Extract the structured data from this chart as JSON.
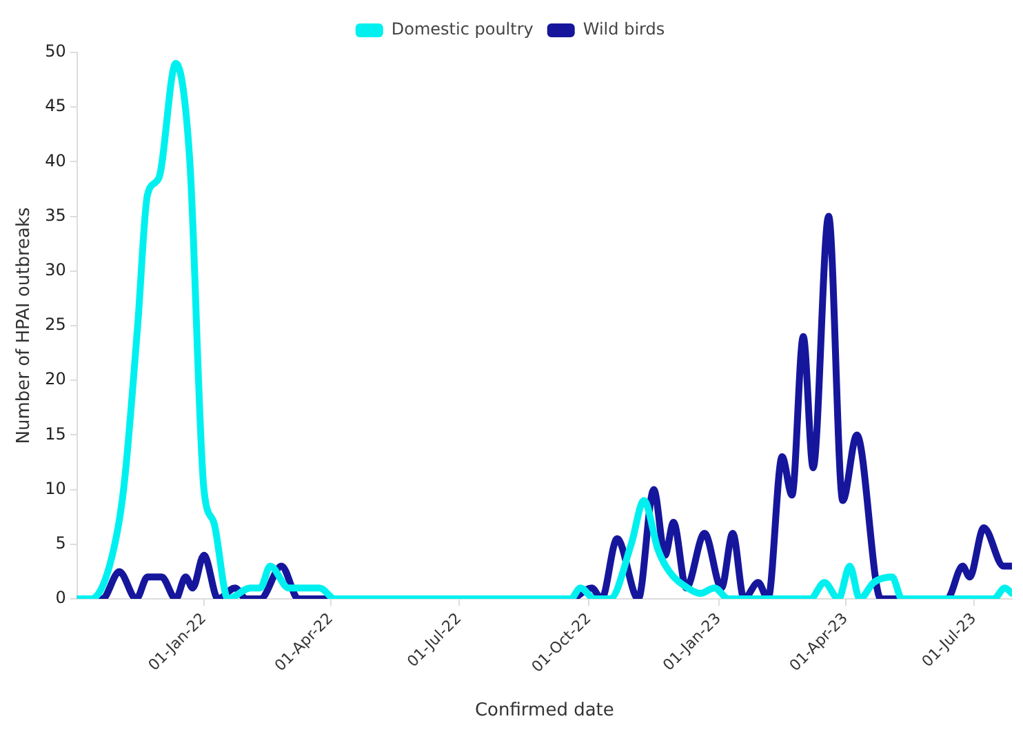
{
  "chart_data": {
    "type": "line",
    "xlabel": "Confirmed date",
    "ylabel": "Number of HPAI outbreaks",
    "xlim": [
      "2021-10-03",
      "2023-07-28"
    ],
    "xticks": [
      {
        "value": "2022-01-01",
        "label": "01-Jan-22"
      },
      {
        "value": "2022-04-01",
        "label": "01-Apr-22"
      },
      {
        "value": "2022-07-01",
        "label": "01-Jul-22"
      },
      {
        "value": "2022-10-01",
        "label": "01-Oct-22"
      },
      {
        "value": "2023-01-01",
        "label": "01-Jan-23"
      },
      {
        "value": "2023-04-01",
        "label": "01-Apr-23"
      },
      {
        "value": "2023-07-01",
        "label": "01-Jul-23"
      }
    ],
    "ylim": [
      0,
      50
    ],
    "yticks": [
      0,
      5,
      10,
      15,
      20,
      25,
      30,
      35,
      40,
      45,
      50
    ],
    "grid": false,
    "legend": "top",
    "marker": "none",
    "line_style": "solid",
    "series": [
      {
        "name": "Domestic poultry",
        "color": "#00f0f0",
        "x": [
          "2021-10-03",
          "2021-10-13",
          "2021-10-26",
          "2021-11-05",
          "2021-11-15",
          "2021-11-22",
          "2021-11-30",
          "2021-12-12",
          "2021-12-22",
          "2022-01-01",
          "2022-01-08",
          "2022-01-18",
          "2022-02-03",
          "2022-02-10",
          "2022-02-17",
          "2022-03-02",
          "2022-03-24",
          "2022-04-04",
          "2022-09-18",
          "2022-09-25",
          "2022-10-05",
          "2022-10-16",
          "2022-10-31",
          "2022-11-09",
          "2022-11-19",
          "2022-11-27",
          "2022-12-10",
          "2022-12-19",
          "2022-12-29",
          "2023-01-08",
          "2023-03-07",
          "2023-03-17",
          "2023-03-27",
          "2023-04-04",
          "2023-04-11",
          "2023-04-21",
          "2023-05-04",
          "2023-05-11",
          "2023-07-15",
          "2023-07-23",
          "2023-07-28"
        ],
        "values": [
          0,
          0,
          3,
          10,
          25,
          37,
          38.5,
          49,
          40,
          10,
          7,
          0,
          1,
          1,
          3,
          1,
          1,
          0,
          0,
          1,
          0,
          0,
          5,
          9,
          4.5,
          2.5,
          1,
          0.5,
          1,
          0,
          0,
          1.5,
          0,
          3,
          0,
          1.5,
          2,
          0,
          0,
          1,
          0.5
        ]
      },
      {
        "name": "Wild birds",
        "color": "#16169c",
        "x": [
          "2021-10-03",
          "2021-10-21",
          "2021-11-02",
          "2021-11-14",
          "2021-11-22",
          "2021-12-02",
          "2021-12-12",
          "2021-12-19",
          "2021-12-24",
          "2022-01-01",
          "2022-01-11",
          "2022-01-23",
          "2022-01-31",
          "2022-02-10",
          "2022-02-25",
          "2022-03-09",
          "2022-09-18",
          "2022-10-03",
          "2022-10-10",
          "2022-10-21",
          "2022-11-05",
          "2022-11-16",
          "2022-11-24",
          "2022-11-30",
          "2022-12-09",
          "2022-12-22",
          "2023-01-03",
          "2023-01-11",
          "2023-01-19",
          "2023-01-29",
          "2023-02-05",
          "2023-02-15",
          "2023-02-22",
          "2023-03-02",
          "2023-03-09",
          "2023-03-20",
          "2023-03-30",
          "2023-04-09",
          "2023-04-26",
          "2023-06-12",
          "2023-06-23",
          "2023-06-28",
          "2023-07-08",
          "2023-07-22",
          "2023-07-28"
        ],
        "values": [
          0,
          0,
          2.5,
          0,
          2,
          2,
          0,
          2,
          1,
          4,
          0,
          1,
          0,
          0,
          3,
          0,
          0,
          1,
          0,
          5.5,
          0,
          10,
          4,
          7,
          1,
          6,
          1,
          6,
          0,
          1.5,
          0,
          13,
          9.5,
          24,
          12,
          35,
          9,
          15,
          0,
          0,
          3,
          2,
          6.5,
          3,
          3
        ]
      }
    ]
  }
}
